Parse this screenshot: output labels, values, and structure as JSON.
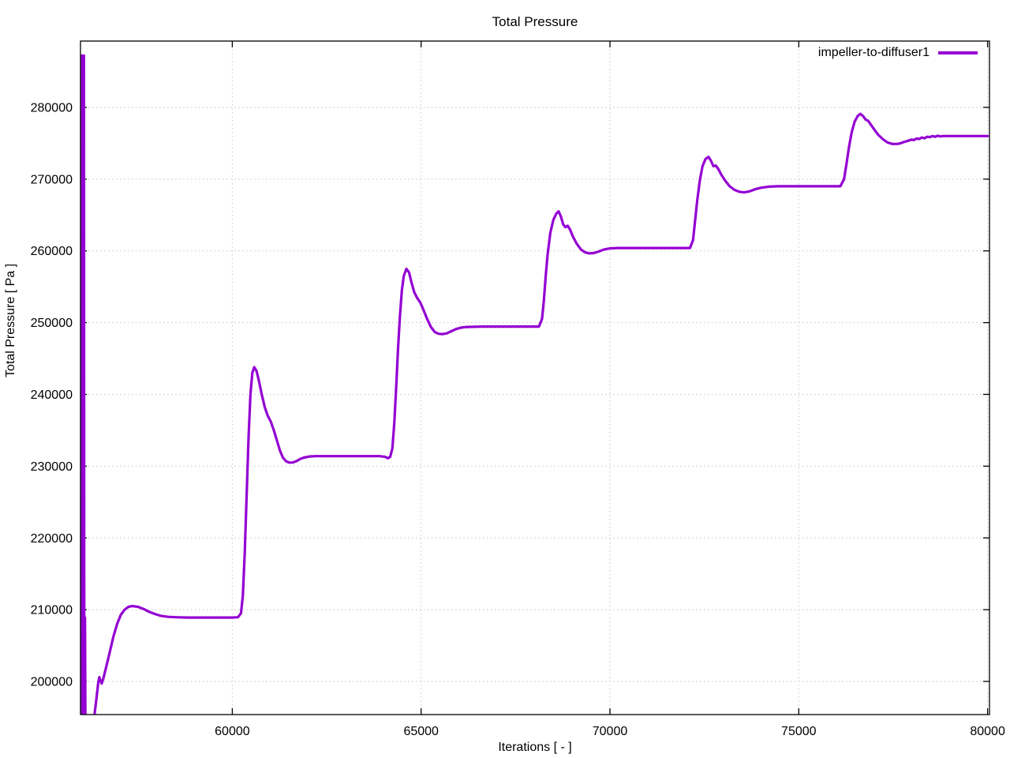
{
  "chart_data": {
    "type": "line",
    "title": "Total Pressure",
    "xlabel": "Iterations [ - ]",
    "ylabel": "Total Pressure [ Pa ]",
    "xlim": [
      55980,
      80050
    ],
    "ylim": [
      195380,
      289240
    ],
    "grid": "dotted-major",
    "grid_color": "#c8c8c8",
    "border_color": "#000000",
    "legend_position": "top-right-inside",
    "xticks": {
      "values": [
        60000,
        65000,
        70000,
        75000,
        80000
      ],
      "labels": [
        "60000",
        "65000",
        "70000",
        "75000",
        "80000"
      ]
    },
    "yticks": {
      "values": [
        200000,
        210000,
        220000,
        230000,
        240000,
        250000,
        260000,
        270000,
        280000
      ],
      "labels": [
        "200000",
        "210000",
        "220000",
        "230000",
        "240000",
        "250000",
        "260000",
        "270000",
        "280000"
      ]
    },
    "series": [
      {
        "name": "impeller-to-diffuser1",
        "color": "#9400d3",
        "points": [
          [
            56000,
            196000
          ],
          [
            56008,
            287200
          ],
          [
            56016,
            195600
          ],
          [
            56024,
            287200
          ],
          [
            56032,
            195600
          ],
          [
            56040,
            287200
          ],
          [
            56048,
            195600
          ],
          [
            56056,
            287200
          ],
          [
            56064,
            195600
          ],
          [
            56072,
            287200
          ],
          [
            56080,
            195600
          ],
          [
            56090,
            195500
          ],
          [
            56100,
            208900
          ],
          [
            56110,
            195500
          ],
          [
            56140,
            194000
          ],
          [
            56250,
            193000
          ],
          [
            56330,
            194500
          ],
          [
            56400,
            197500
          ],
          [
            56450,
            199800
          ],
          [
            56480,
            200600
          ],
          [
            56510,
            200100
          ],
          [
            56540,
            199700
          ],
          [
            56580,
            200300
          ],
          [
            56650,
            201800
          ],
          [
            56750,
            204000
          ],
          [
            56850,
            206200
          ],
          [
            56950,
            208000
          ],
          [
            57050,
            209300
          ],
          [
            57150,
            210000
          ],
          [
            57250,
            210400
          ],
          [
            57350,
            210500
          ],
          [
            57500,
            210400
          ],
          [
            57650,
            210100
          ],
          [
            57800,
            209700
          ],
          [
            57950,
            209400
          ],
          [
            58100,
            209150
          ],
          [
            58300,
            209000
          ],
          [
            58500,
            208950
          ],
          [
            58800,
            208900
          ],
          [
            59200,
            208900
          ],
          [
            59600,
            208900
          ],
          [
            60000,
            208900
          ],
          [
            60150,
            208950
          ],
          [
            60230,
            209500
          ],
          [
            60280,
            212000
          ],
          [
            60330,
            218000
          ],
          [
            60380,
            226000
          ],
          [
            60430,
            234000
          ],
          [
            60480,
            240000
          ],
          [
            60530,
            243000
          ],
          [
            60580,
            243800
          ],
          [
            60640,
            243300
          ],
          [
            60700,
            242000
          ],
          [
            60780,
            240000
          ],
          [
            60860,
            238200
          ],
          [
            60940,
            237000
          ],
          [
            61020,
            236200
          ],
          [
            61100,
            235000
          ],
          [
            61180,
            233600
          ],
          [
            61260,
            232200
          ],
          [
            61340,
            231200
          ],
          [
            61420,
            230700
          ],
          [
            61500,
            230500
          ],
          [
            61600,
            230500
          ],
          [
            61700,
            230700
          ],
          [
            61800,
            231000
          ],
          [
            61900,
            231200
          ],
          [
            62050,
            231350
          ],
          [
            62200,
            231400
          ],
          [
            62600,
            231400
          ],
          [
            63000,
            231400
          ],
          [
            63500,
            231400
          ],
          [
            63900,
            231400
          ],
          [
            64050,
            231300
          ],
          [
            64120,
            231100
          ],
          [
            64180,
            231300
          ],
          [
            64240,
            232500
          ],
          [
            64290,
            236000
          ],
          [
            64340,
            241000
          ],
          [
            64390,
            246500
          ],
          [
            64440,
            251000
          ],
          [
            64490,
            254500
          ],
          [
            64540,
            256500
          ],
          [
            64610,
            257500
          ],
          [
            64680,
            257000
          ],
          [
            64750,
            255500
          ],
          [
            64820,
            254200
          ],
          [
            64900,
            253400
          ],
          [
            64980,
            252800
          ],
          [
            65060,
            251800
          ],
          [
            65160,
            250500
          ],
          [
            65260,
            249400
          ],
          [
            65360,
            248700
          ],
          [
            65460,
            248450
          ],
          [
            65560,
            248400
          ],
          [
            65680,
            248500
          ],
          [
            65800,
            248800
          ],
          [
            65920,
            249100
          ],
          [
            66050,
            249300
          ],
          [
            66200,
            249400
          ],
          [
            66600,
            249450
          ],
          [
            67000,
            249450
          ],
          [
            67500,
            249450
          ],
          [
            68000,
            249450
          ],
          [
            68120,
            249450
          ],
          [
            68200,
            250500
          ],
          [
            68250,
            253000
          ],
          [
            68300,
            256500
          ],
          [
            68350,
            259500
          ],
          [
            68420,
            262500
          ],
          [
            68500,
            264300
          ],
          [
            68580,
            265200
          ],
          [
            68640,
            265500
          ],
          [
            68700,
            264800
          ],
          [
            68760,
            263700
          ],
          [
            68820,
            263300
          ],
          [
            68880,
            263500
          ],
          [
            68940,
            263000
          ],
          [
            69020,
            262000
          ],
          [
            69120,
            261000
          ],
          [
            69230,
            260200
          ],
          [
            69340,
            259800
          ],
          [
            69450,
            259650
          ],
          [
            69570,
            259700
          ],
          [
            69700,
            259900
          ],
          [
            69850,
            260200
          ],
          [
            70000,
            260350
          ],
          [
            70200,
            260400
          ],
          [
            70600,
            260400
          ],
          [
            71000,
            260400
          ],
          [
            71500,
            260400
          ],
          [
            72000,
            260400
          ],
          [
            72120,
            260400
          ],
          [
            72200,
            261500
          ],
          [
            72250,
            264000
          ],
          [
            72310,
            267000
          ],
          [
            72380,
            269800
          ],
          [
            72450,
            271800
          ],
          [
            72530,
            272800
          ],
          [
            72610,
            273100
          ],
          [
            72680,
            272500
          ],
          [
            72740,
            271800
          ],
          [
            72800,
            271900
          ],
          [
            72870,
            271400
          ],
          [
            72950,
            270600
          ],
          [
            73050,
            269800
          ],
          [
            73170,
            269000
          ],
          [
            73300,
            268500
          ],
          [
            73420,
            268250
          ],
          [
            73550,
            268150
          ],
          [
            73700,
            268300
          ],
          [
            73850,
            268600
          ],
          [
            74000,
            268800
          ],
          [
            74200,
            268950
          ],
          [
            74450,
            269000
          ],
          [
            74800,
            269000
          ],
          [
            75200,
            269000
          ],
          [
            75600,
            269000
          ],
          [
            76000,
            269000
          ],
          [
            76100,
            269000
          ],
          [
            76200,
            270000
          ],
          [
            76260,
            272000
          ],
          [
            76330,
            274500
          ],
          [
            76400,
            276500
          ],
          [
            76480,
            278000
          ],
          [
            76560,
            278800
          ],
          [
            76630,
            279100
          ],
          [
            76700,
            278800
          ],
          [
            76770,
            278300
          ],
          [
            76840,
            278100
          ],
          [
            76920,
            277500
          ],
          [
            77000,
            276900
          ],
          [
            77100,
            276200
          ],
          [
            77220,
            275600
          ],
          [
            77350,
            275100
          ],
          [
            77480,
            274900
          ],
          [
            77600,
            274900
          ],
          [
            77700,
            275000
          ],
          [
            77800,
            275200
          ],
          [
            77900,
            275350
          ],
          [
            77980,
            275500
          ],
          [
            78050,
            275450
          ],
          [
            78120,
            275650
          ],
          [
            78190,
            275600
          ],
          [
            78260,
            275800
          ],
          [
            78330,
            275700
          ],
          [
            78400,
            275900
          ],
          [
            78470,
            275850
          ],
          [
            78540,
            276000
          ],
          [
            78610,
            275900
          ],
          [
            78680,
            276050
          ],
          [
            78750,
            275950
          ],
          [
            78820,
            276000
          ],
          [
            79000,
            276000
          ],
          [
            79400,
            276000
          ],
          [
            79800,
            276000
          ],
          [
            80000,
            276000
          ]
        ]
      }
    ]
  }
}
